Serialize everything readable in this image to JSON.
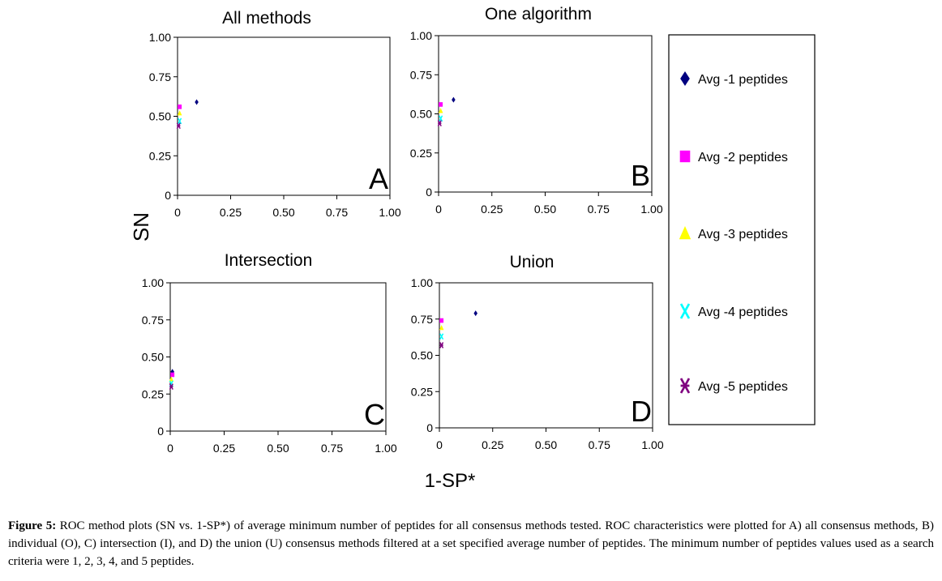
{
  "figure": {
    "ylabel_shared": "SN",
    "xlabel_shared": "1-SP*",
    "caption_label": "Figure 5:",
    "caption_text": "ROC method plots (SN vs. 1-SP*) of average minimum number of peptides for all consensus methods tested.  ROC characteristics were plotted for A) all consensus methods, B) individual (O), C) intersection (I), and D) the union (U) consensus methods filtered at a set specified average number of peptides. The minimum number of peptides values used as a search criteria were 1, 2, 3, 4, and 5 peptides."
  },
  "legend": {
    "placement": "right",
    "items": [
      {
        "label": "Avg -1 peptides",
        "marker": "diamond",
        "color": "#000080"
      },
      {
        "label": "Avg -2 peptides",
        "marker": "square",
        "color": "#ff00ff"
      },
      {
        "label": "Avg -3 peptides",
        "marker": "triangle",
        "color": "#ffff00"
      },
      {
        "label": "Avg -4 peptides",
        "marker": "x",
        "color": "#00ffff"
      },
      {
        "label": "Avg -5 peptides",
        "marker": "star",
        "color": "#800080"
      }
    ]
  },
  "chart_data": [
    {
      "type": "scatter",
      "title": "All methods",
      "panel_letter": "A",
      "xlim": [
        0,
        1
      ],
      "ylim": [
        0,
        1
      ],
      "xticks": [
        "0",
        "0.25",
        "0.50",
        "0.75",
        "1.00"
      ],
      "yticks": [
        "0",
        "0.25",
        "0.50",
        "0.75",
        "1.00"
      ],
      "grid": false,
      "series": [
        {
          "name": "Avg -1 peptides",
          "points": [
            [
              0.09,
              0.59
            ]
          ]
        },
        {
          "name": "Avg -2 peptides",
          "points": [
            [
              0.01,
              0.56
            ]
          ]
        },
        {
          "name": "Avg -3 peptides",
          "points": [
            [
              0.01,
              0.52
            ]
          ]
        },
        {
          "name": "Avg -4 peptides",
          "points": [
            [
              0.01,
              0.47
            ]
          ]
        },
        {
          "name": "Avg -5 peptides",
          "points": [
            [
              0.005,
              0.44
            ]
          ]
        }
      ]
    },
    {
      "type": "scatter",
      "title": "One algorithm",
      "panel_letter": "B",
      "xlim": [
        0,
        1
      ],
      "ylim": [
        0,
        1
      ],
      "xticks": [
        "0",
        "0.25",
        "0.50",
        "0.75",
        "1.00"
      ],
      "yticks": [
        "0",
        "0.25",
        "0.50",
        "0.75",
        "1.00"
      ],
      "grid": false,
      "series": [
        {
          "name": "Avg -1 peptides",
          "points": [
            [
              0.07,
              0.59
            ]
          ]
        },
        {
          "name": "Avg -2 peptides",
          "points": [
            [
              0.01,
              0.56
            ]
          ]
        },
        {
          "name": "Avg -3 peptides",
          "points": [
            [
              0.01,
              0.52
            ]
          ]
        },
        {
          "name": "Avg -4 peptides",
          "points": [
            [
              0.01,
              0.47
            ]
          ]
        },
        {
          "name": "Avg -5 peptides",
          "points": [
            [
              0.005,
              0.44
            ]
          ]
        }
      ]
    },
    {
      "type": "scatter",
      "title": "Intersection",
      "panel_letter": "C",
      "xlim": [
        0,
        1
      ],
      "ylim": [
        0,
        1
      ],
      "xticks": [
        "0",
        "0.25",
        "0.50",
        "0.75",
        "1.00"
      ],
      "yticks": [
        "0",
        "0.25",
        "0.50",
        "0.75",
        "1.00"
      ],
      "grid": false,
      "series": [
        {
          "name": "Avg -1 peptides",
          "points": [
            [
              0.01,
              0.4
            ]
          ]
        },
        {
          "name": "Avg -2 peptides",
          "points": [
            [
              0.01,
              0.38
            ]
          ]
        },
        {
          "name": "Avg -3 peptides",
          "points": [
            [
              0.005,
              0.35
            ]
          ]
        },
        {
          "name": "Avg -4 peptides",
          "points": [
            [
              0.005,
              0.32
            ]
          ]
        },
        {
          "name": "Avg -5 peptides",
          "points": [
            [
              0.005,
              0.3
            ]
          ]
        }
      ]
    },
    {
      "type": "scatter",
      "title": "Union",
      "panel_letter": "D",
      "xlim": [
        0,
        1
      ],
      "ylim": [
        0,
        1
      ],
      "xticks": [
        "0",
        "0.25",
        "0.50",
        "0.75",
        "1.00"
      ],
      "yticks": [
        "0",
        "0.25",
        "0.50",
        "0.75",
        "1.00"
      ],
      "grid": false,
      "series": [
        {
          "name": "Avg -1 peptides",
          "points": [
            [
              0.17,
              0.79
            ]
          ]
        },
        {
          "name": "Avg -2 peptides",
          "points": [
            [
              0.01,
              0.74
            ]
          ]
        },
        {
          "name": "Avg -3 peptides",
          "points": [
            [
              0.01,
              0.69
            ]
          ]
        },
        {
          "name": "Avg -4 peptides",
          "points": [
            [
              0.01,
              0.63
            ]
          ]
        },
        {
          "name": "Avg -5 peptides",
          "points": [
            [
              0.01,
              0.57
            ]
          ]
        }
      ]
    }
  ]
}
